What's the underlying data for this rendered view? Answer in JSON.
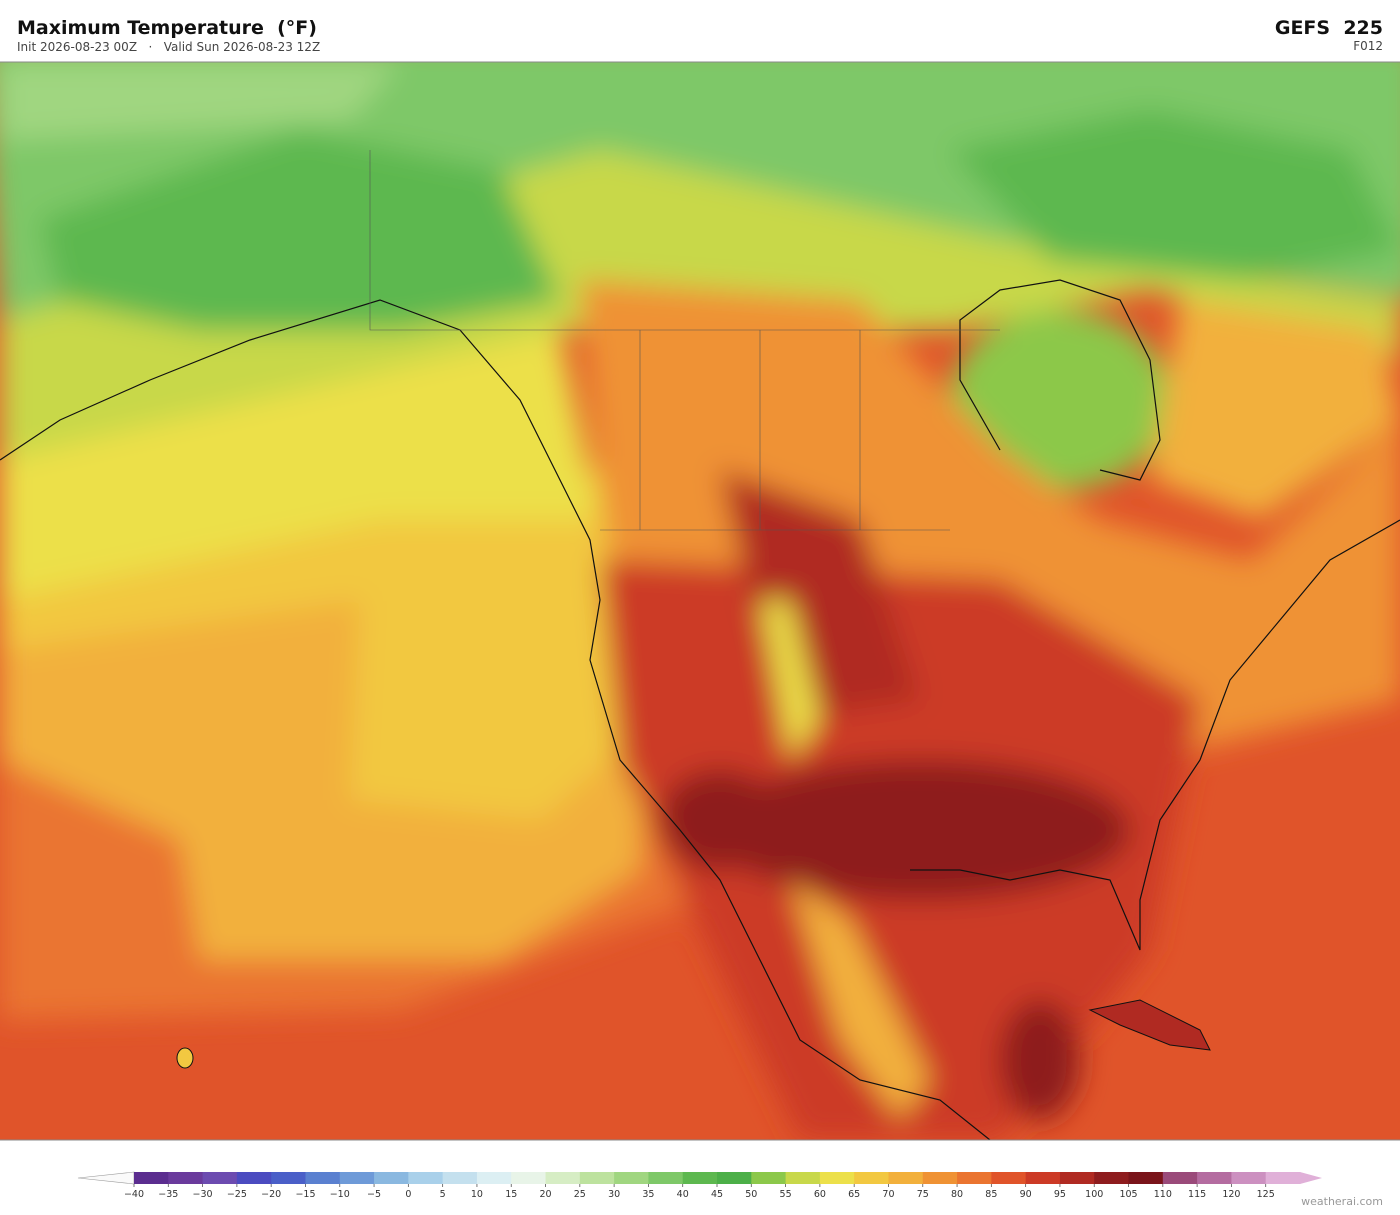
{
  "header": {
    "title": "Maximum Temperature  (°F)",
    "subtitle": "Init 2026-08-23 00Z   ·   Valid Sun 2026-08-23 12Z",
    "model": "GEFS  225",
    "forecast_hour": "F012"
  },
  "colorbar": {
    "range": [
      -40,
      130
    ],
    "ticks": [
      {
        "value": -40,
        "label": "−40"
      },
      {
        "value": -35,
        "label": "−35"
      },
      {
        "value": -30,
        "label": "−30"
      },
      {
        "value": -25,
        "label": "−25"
      },
      {
        "value": -20,
        "label": "−20"
      },
      {
        "value": -15,
        "label": "−15"
      },
      {
        "value": -10,
        "label": "−10"
      },
      {
        "value": -5,
        "label": "−5"
      },
      0,
      5,
      10,
      15,
      20,
      25,
      30,
      35,
      40,
      45,
      50,
      55,
      60,
      65,
      70,
      75,
      80,
      85,
      90,
      95,
      100,
      105,
      110,
      115,
      120,
      125
    ],
    "colors": [
      "#5b2d8f",
      "#6a3a9c",
      "#6c4bb0",
      "#4b4bc0",
      "#4a5fc8",
      "#5a80d0",
      "#6e9ad8",
      "#8ab8e0",
      "#a9d0ea",
      "#c4e0ee",
      "#dceff3",
      "#e8f4e8",
      "#d6edc4",
      "#bde29e",
      "#a0d680",
      "#7ec868",
      "#5db84f",
      "#4caf48",
      "#8cc84a",
      "#c8d84a",
      "#ece04a",
      "#f2c841",
      "#f2b03c",
      "#ef9234",
      "#ea7430",
      "#e0542a",
      "#cc3a26",
      "#b02a22",
      "#8e1c1e",
      "#7a141a",
      "#9a4a7a",
      "#b46ca0",
      "#cc90c0",
      "#e0b0d8"
    ]
  },
  "footer": {
    "credit": "weatherai.com"
  }
}
